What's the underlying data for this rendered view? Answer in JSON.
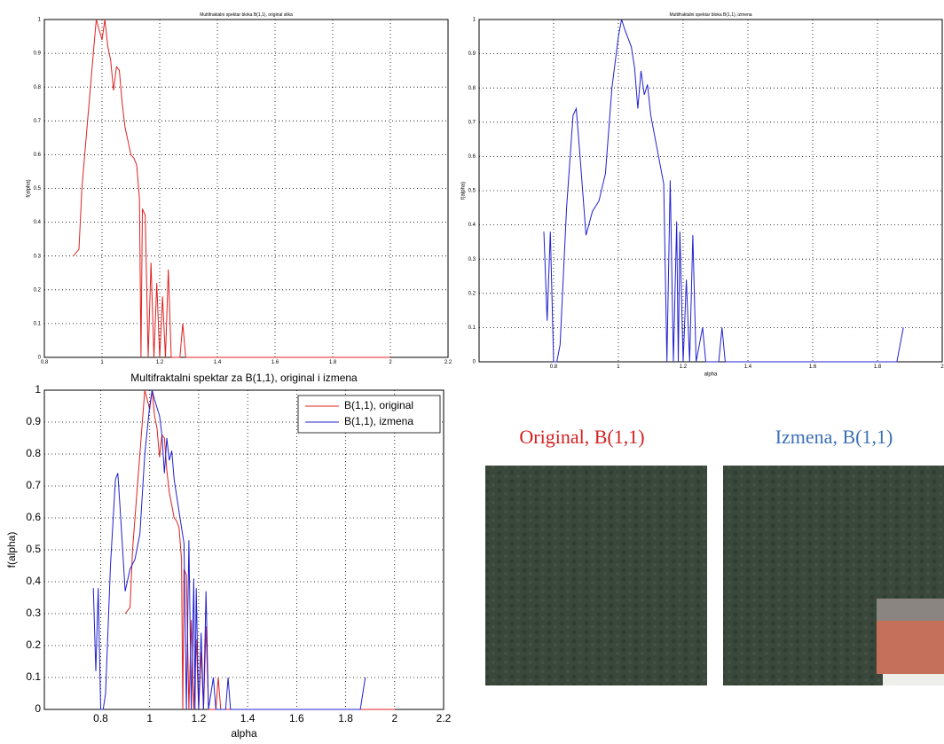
{
  "chart_data": [
    {
      "type": "line",
      "title": "Multifraktalni spektar bloka B(1,1), original slika",
      "ylabel": "f(alpha)",
      "xlim": [
        0.8,
        2.2
      ],
      "xticks": [
        0.8,
        1,
        1.2,
        1.4,
        1.6,
        1.8,
        2,
        2.2
      ],
      "ylim": [
        0,
        1
      ],
      "yticks": [
        0,
        0.1,
        0.2,
        0.3,
        0.4,
        0.5,
        0.6,
        0.7,
        0.8,
        0.9,
        1
      ],
      "grid": true,
      "series": [
        {
          "color": "#e02020",
          "x": [
            0.9,
            0.92,
            0.93,
            0.95,
            0.97,
            0.98,
            0.99,
            1.0,
            1.01,
            1.02,
            1.03,
            1.04,
            1.05,
            1.06,
            1.07,
            1.08,
            1.09,
            1.1,
            1.11,
            1.12,
            1.13,
            1.135,
            1.14,
            1.15,
            1.16,
            1.17,
            1.18,
            1.19,
            1.2,
            1.21,
            1.22,
            1.23,
            1.24,
            1.27,
            1.28,
            1.29,
            2.0
          ],
          "values": [
            0.3,
            0.32,
            0.5,
            0.7,
            0.9,
            1.0,
            0.97,
            0.94,
            1.0,
            0.92,
            0.88,
            0.79,
            0.86,
            0.85,
            0.75,
            0.68,
            0.64,
            0.6,
            0.59,
            0.57,
            0.47,
            0,
            0.44,
            0.42,
            0,
            0.28,
            0,
            0.22,
            0,
            0.18,
            0,
            0.26,
            0,
            0,
            0.1,
            0,
            0
          ]
        }
      ]
    },
    {
      "type": "line",
      "title": "Multifraktalni spektar bloka B(1,1), izmena",
      "xlabel": "alpha",
      "ylabel": "f(alpha)",
      "xlim": [
        0.57,
        2.0
      ],
      "xticks": [
        0.8,
        1,
        1.2,
        1.4,
        1.6,
        1.8,
        2
      ],
      "ylim": [
        0,
        1
      ],
      "yticks": [
        0,
        0.1,
        0.2,
        0.3,
        0.4,
        0.5,
        0.6,
        0.7,
        0.8,
        0.9,
        1
      ],
      "grid": true,
      "series": [
        {
          "color": "#2020d0",
          "x": [
            0.77,
            0.78,
            0.79,
            0.8,
            0.81,
            0.82,
            0.84,
            0.86,
            0.87,
            0.88,
            0.9,
            0.92,
            0.94,
            0.96,
            0.98,
            1.0,
            1.01,
            1.02,
            1.04,
            1.05,
            1.06,
            1.07,
            1.08,
            1.09,
            1.1,
            1.12,
            1.14,
            1.15,
            1.16,
            1.17,
            1.18,
            1.185,
            1.19,
            1.2,
            1.21,
            1.22,
            1.23,
            1.24,
            1.26,
            1.27,
            1.31,
            1.32,
            1.33,
            1.86,
            1.88
          ],
          "values": [
            0.38,
            0.12,
            0.38,
            0,
            0,
            0.05,
            0.45,
            0.72,
            0.74,
            0.62,
            0.37,
            0.44,
            0.47,
            0.55,
            0.8,
            0.95,
            1.0,
            0.97,
            0.92,
            0.86,
            0.74,
            0.85,
            0.78,
            0.81,
            0.72,
            0.62,
            0.52,
            0,
            0.53,
            0,
            0.41,
            0,
            0.38,
            0,
            0.24,
            0,
            0.37,
            0,
            0.1,
            0,
            0,
            0.1,
            0,
            0,
            0.1
          ]
        }
      ]
    },
    {
      "type": "line",
      "title": "Multifraktalni spektar za B(1,1), original i izmena",
      "xlabel": "alpha",
      "ylabel": "f(alpha)",
      "xlim": [
        0.57,
        2.2
      ],
      "xticks": [
        0.8,
        1,
        1.2,
        1.4,
        1.6,
        1.8,
        2,
        2.2
      ],
      "ylim": [
        0,
        1
      ],
      "yticks": [
        0,
        0.1,
        0.2,
        0.3,
        0.4,
        0.5,
        0.6,
        0.7,
        0.8,
        0.9,
        1
      ],
      "grid": true,
      "legend": "upper right",
      "series": [
        {
          "name": "B(1,1), original",
          "color": "#e02020",
          "x": [
            0.9,
            0.92,
            0.93,
            0.95,
            0.97,
            0.98,
            0.99,
            1.0,
            1.01,
            1.02,
            1.03,
            1.04,
            1.05,
            1.06,
            1.07,
            1.08,
            1.09,
            1.1,
            1.11,
            1.12,
            1.13,
            1.135,
            1.14,
            1.15,
            1.16,
            1.17,
            1.18,
            1.19,
            1.2,
            1.21,
            1.22,
            1.23,
            1.24,
            1.27,
            1.28,
            1.29,
            2.0
          ],
          "values": [
            0.3,
            0.32,
            0.5,
            0.7,
            0.9,
            1.0,
            0.97,
            0.94,
            1.0,
            0.92,
            0.88,
            0.79,
            0.86,
            0.85,
            0.75,
            0.68,
            0.64,
            0.6,
            0.59,
            0.57,
            0.47,
            0,
            0.44,
            0.42,
            0,
            0.28,
            0,
            0.22,
            0,
            0.18,
            0,
            0.26,
            0,
            0,
            0.1,
            0,
            0
          ]
        },
        {
          "name": "B(1,1), izmena",
          "color": "#2020d0",
          "x": [
            0.77,
            0.78,
            0.79,
            0.8,
            0.81,
            0.82,
            0.84,
            0.86,
            0.87,
            0.88,
            0.9,
            0.92,
            0.94,
            0.96,
            0.98,
            1.0,
            1.01,
            1.02,
            1.04,
            1.05,
            1.06,
            1.07,
            1.08,
            1.09,
            1.1,
            1.12,
            1.14,
            1.15,
            1.16,
            1.17,
            1.18,
            1.185,
            1.19,
            1.2,
            1.21,
            1.22,
            1.23,
            1.24,
            1.26,
            1.27,
            1.31,
            1.32,
            1.33,
            1.86,
            1.88
          ],
          "values": [
            0.38,
            0.12,
            0.38,
            0,
            0,
            0.05,
            0.45,
            0.72,
            0.74,
            0.62,
            0.37,
            0.44,
            0.47,
            0.55,
            0.8,
            0.95,
            1.0,
            0.97,
            0.92,
            0.86,
            0.74,
            0.85,
            0.78,
            0.81,
            0.72,
            0.62,
            0.52,
            0,
            0.53,
            0,
            0.41,
            0,
            0.38,
            0,
            0.24,
            0,
            0.37,
            0,
            0.1,
            0,
            0,
            0.1,
            0,
            0,
            0.1
          ]
        }
      ]
    }
  ],
  "captions": [
    "Original, B(1,1)",
    "Izmena, B(1,1)"
  ]
}
